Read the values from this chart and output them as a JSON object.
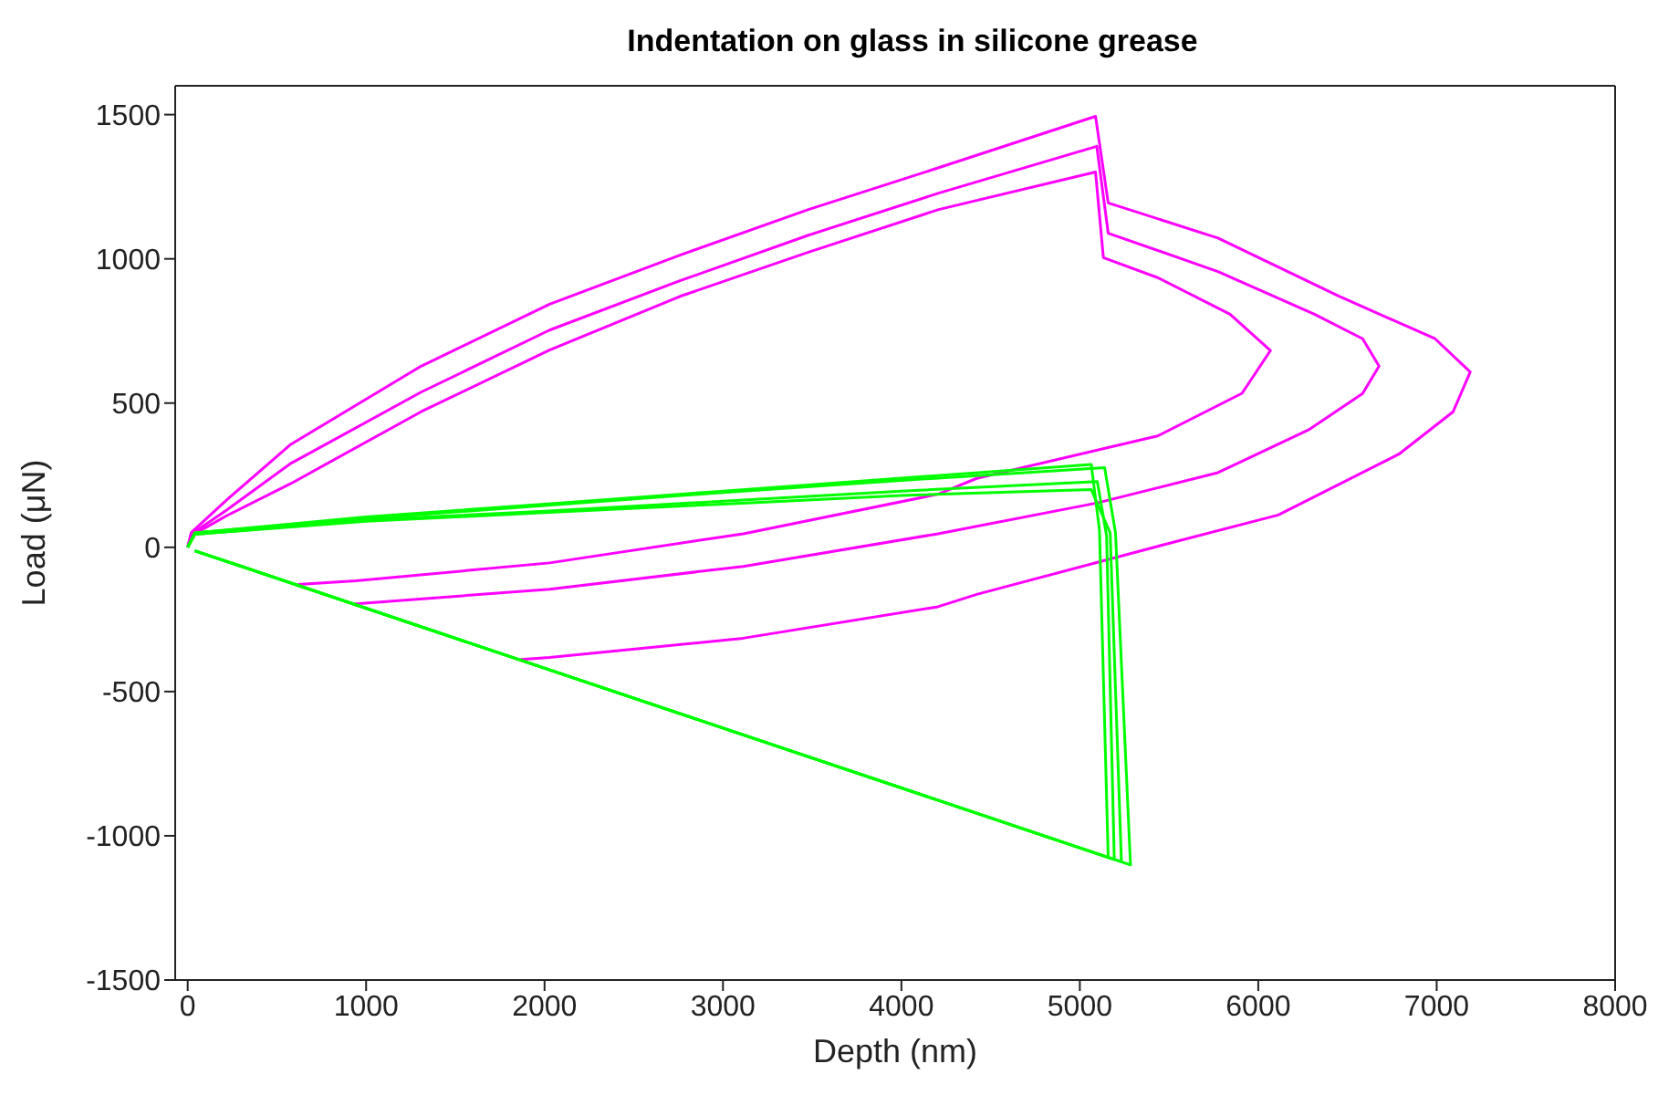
{
  "chart_data": {
    "type": "line",
    "title": "Indentation on glass in silicone grease",
    "xlabel": "Depth (nm)",
    "ylabel": "Load (μN)",
    "xlim": [
      -70,
      8000
    ],
    "xticks": [
      0,
      1000,
      2000,
      3000,
      4000,
      5000,
      6000,
      7000,
      8000
    ],
    "ylim": [
      -1500,
      1600
    ],
    "yticks": [
      -1500,
      -1000,
      -500,
      0,
      500,
      1000,
      1500
    ],
    "marker": "none",
    "line_style": "solid",
    "series": [
      {
        "color": "#ff00ff",
        "x": [
          0,
          20,
          220,
          578,
          1308,
          2028,
          2759,
          3479,
          4209,
          5088,
          5159,
          5774,
          6450,
          6991,
          7188,
          7092,
          6788,
          6112,
          5538,
          4422,
          4205,
          3114,
          2028,
          1866
        ],
        "values": [
          0,
          51,
          165,
          357,
          628,
          843,
          1013,
          1171,
          1316,
          1494,
          1194,
          1072,
          871,
          723,
          608,
          470,
          323,
          112,
          20,
          -163,
          -206,
          -315,
          -382,
          -389
        ]
      },
      {
        "color": "#ff00ff",
        "x": [
          0,
          20,
          220,
          578,
          1308,
          2028,
          2759,
          3479,
          4209,
          5095,
          5159,
          5774,
          6315,
          6585,
          6677,
          6585,
          6281,
          5774,
          5098,
          4205,
          3114,
          2028,
          943,
          927
        ],
        "values": [
          0,
          45,
          130,
          291,
          538,
          753,
          924,
          1082,
          1228,
          1390,
          1089,
          956,
          808,
          723,
          628,
          533,
          407,
          259,
          154,
          47,
          -66,
          -145,
          -196,
          -196
        ]
      },
      {
        "color": "#ff00ff",
        "x": [
          0,
          20,
          220,
          578,
          1308,
          2028,
          2759,
          3479,
          4209,
          5088,
          5132,
          5436,
          5842,
          6068,
          5909,
          5436,
          4422,
          4205,
          3114,
          2028,
          943,
          619
        ],
        "values": [
          0,
          40,
          110,
          221,
          470,
          684,
          870,
          1023,
          1171,
          1301,
          1004,
          935,
          808,
          682,
          534,
          386,
          239,
          184,
          47,
          -54,
          -116,
          -129
        ]
      },
      {
        "color": "#00ff00",
        "x": [
          0,
          40,
          1000,
          2000,
          3000,
          4000,
          5064,
          5110,
          5159,
          40
        ],
        "values": [
          0,
          50,
          105,
          150,
          195,
          240,
          287,
          60,
          -1075,
          -12
        ]
      },
      {
        "color": "#00ff00",
        "x": [
          0,
          40,
          1000,
          2000,
          3000,
          4000,
          5139,
          5200,
          5284,
          40
        ],
        "values": [
          0,
          50,
          100,
          145,
          190,
          232,
          276,
          50,
          -1101,
          -12
        ]
      },
      {
        "color": "#00ff00",
        "x": [
          0,
          40,
          1000,
          2000,
          3000,
          4000,
          5098,
          5150,
          5193,
          40
        ],
        "values": [
          0,
          45,
          95,
          125,
          160,
          195,
          228,
          40,
          -1082,
          -12
        ]
      },
      {
        "color": "#00ff00",
        "x": [
          0,
          40,
          1000,
          2000,
          3000,
          4000,
          5064,
          5170,
          5233,
          40
        ],
        "values": [
          0,
          45,
          90,
          120,
          150,
          180,
          200,
          50,
          -1090,
          -12
        ]
      }
    ]
  }
}
